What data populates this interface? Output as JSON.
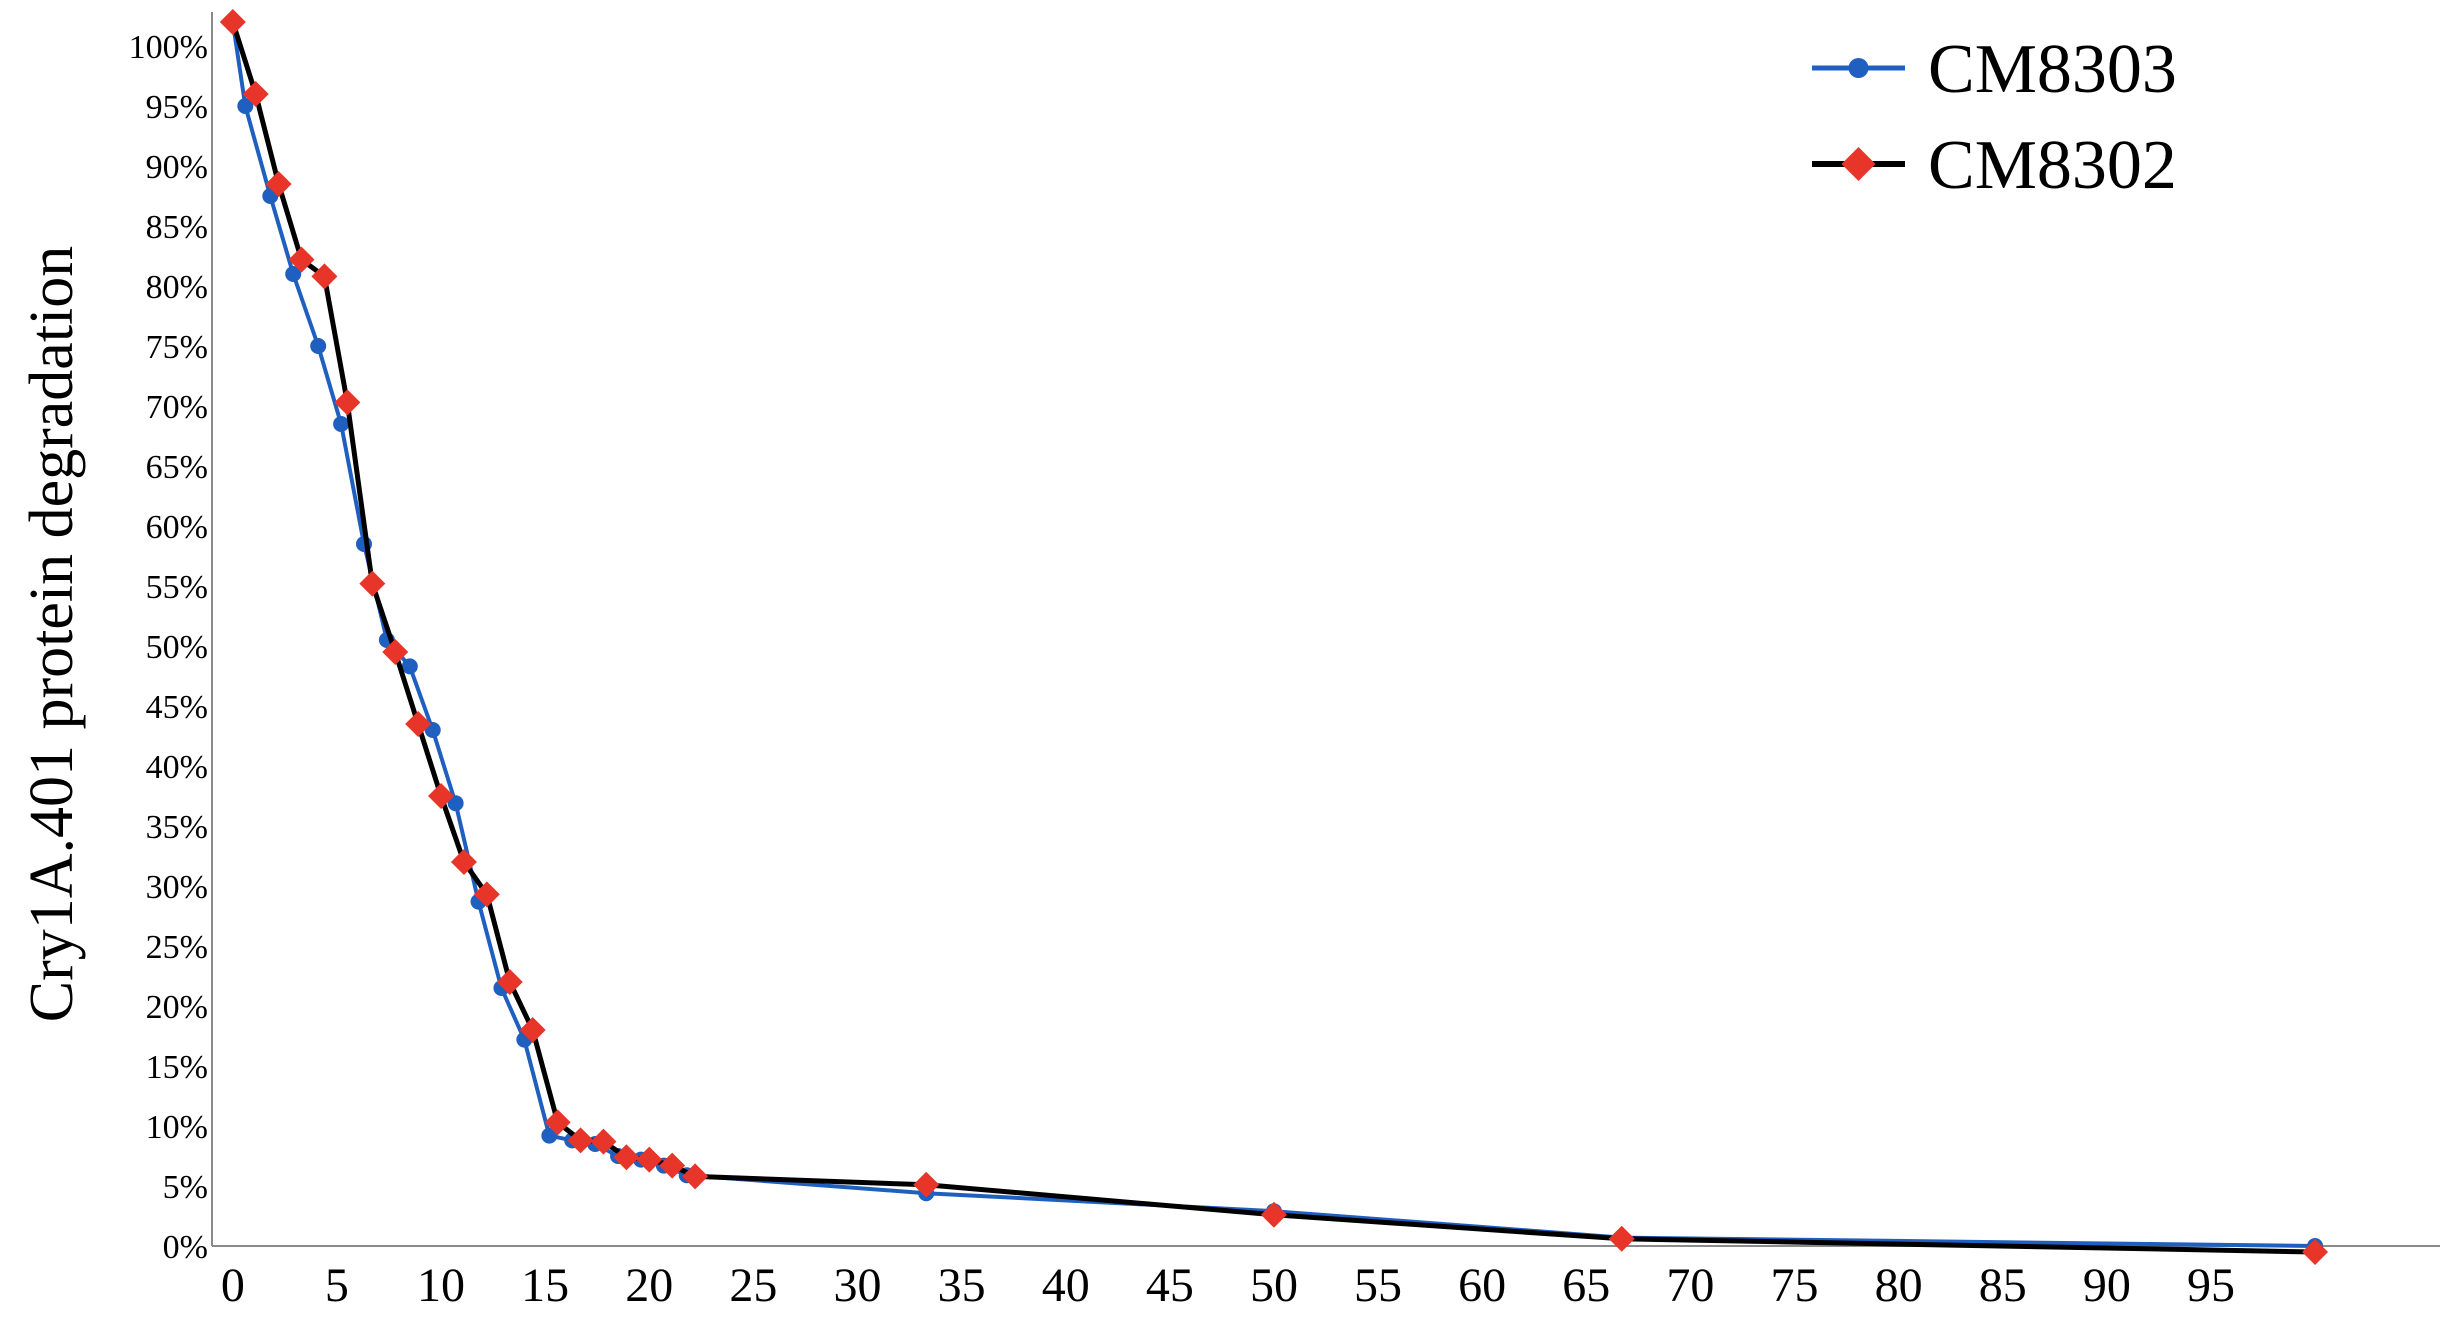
{
  "chart_data": {
    "type": "line",
    "title": "",
    "xlabel": "",
    "ylabel": "Cry1A.401 protein degradation",
    "xlim": [
      -1,
      106
    ],
    "ylim": [
      0,
      102
    ],
    "x_ticks": [
      0,
      5,
      10,
      15,
      20,
      25,
      30,
      35,
      40,
      45,
      50,
      55,
      60,
      65,
      70,
      75,
      80,
      85,
      90,
      95
    ],
    "x_tick_labels": [
      "0",
      "5",
      "10",
      "15",
      "20",
      "25",
      "30",
      "35",
      "40",
      "45",
      "50",
      "55",
      "60",
      "65",
      "70",
      "75",
      "80",
      "85",
      "90",
      "95"
    ],
    "y_ticks": [
      0,
      5,
      10,
      15,
      20,
      25,
      30,
      35,
      40,
      45,
      50,
      55,
      60,
      65,
      70,
      75,
      80,
      85,
      90,
      95,
      100
    ],
    "y_tick_labels": [
      "0%",
      "5%",
      "10%",
      "15%",
      "20%",
      "25%",
      "30%",
      "35%",
      "40%",
      "45%",
      "50%",
      "55%",
      "60%",
      "65%",
      "70%",
      "75%",
      "80%",
      "85%",
      "90%",
      "95%",
      "100%"
    ],
    "grid": false,
    "legend_position": "top-right",
    "series": [
      {
        "name": "CM8303",
        "color": "#1f5fbf",
        "marker": "circle",
        "x": [
          0,
          0.6,
          1.8,
          2.9,
          4.1,
          5.2,
          6.3,
          7.4,
          8.5,
          9.6,
          10.7,
          11.8,
          12.9,
          14.0,
          15.2,
          16.3,
          17.4,
          18.5,
          19.6,
          20.7,
          21.8,
          33.3,
          50,
          66.7,
          100
        ],
        "y": [
          102,
          95,
          87.5,
          81,
          75,
          68.5,
          58.5,
          50.5,
          48.3,
          43,
          36.9,
          28.7,
          21.5,
          17.2,
          9.2,
          8.8,
          8.5,
          7.5,
          7.2,
          6.7,
          5.9,
          4.4,
          2.9,
          0.7,
          0
        ]
      },
      {
        "name": "CM8302",
        "color": "#e8352a",
        "line_color": "#000000",
        "marker": "diamond",
        "x": [
          0,
          1.1,
          2.2,
          3.3,
          4.4,
          5.5,
          6.7,
          7.8,
          8.9,
          10,
          11.1,
          12.2,
          13.3,
          14.4,
          15.6,
          16.7,
          17.8,
          18.9,
          20,
          21.1,
          22.2,
          33.3,
          50,
          66.7,
          100
        ],
        "y": [
          102,
          96,
          88.5,
          82.2,
          80.8,
          70.3,
          55.2,
          49.5,
          43.5,
          37.5,
          32,
          29.3,
          22,
          18,
          10.3,
          8.8,
          8.7,
          7.4,
          7.2,
          6.7,
          5.8,
          5.1,
          2.6,
          0.6,
          -0.5
        ]
      }
    ]
  }
}
